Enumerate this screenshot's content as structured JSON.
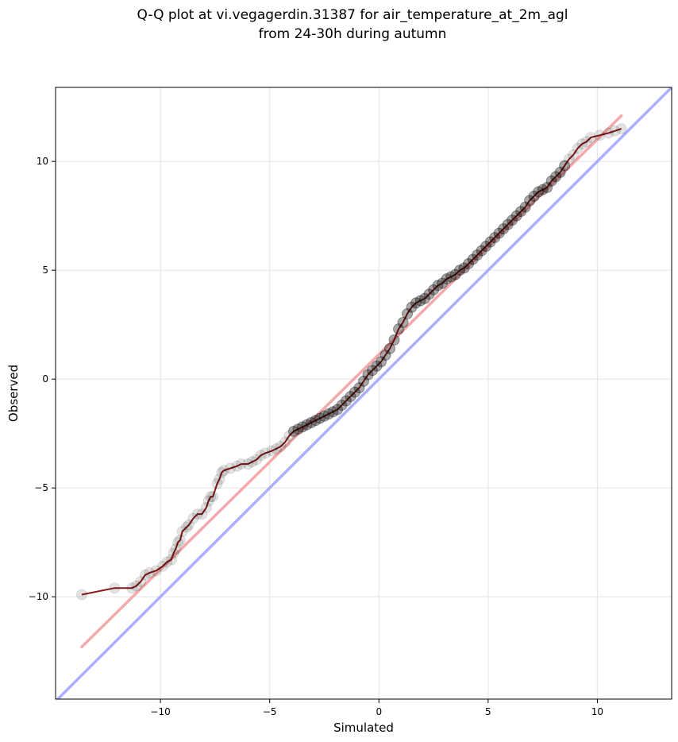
{
  "chart_data": {
    "type": "scatter",
    "title_lines": [
      "Q-Q plot at vi.vegagerdin.31387 for air_temperature_at_2m_agl",
      "from 24-30h during autumn"
    ],
    "xlabel": "Simulated",
    "ylabel": "Observed",
    "xlim": [
      -14.8,
      13.4
    ],
    "ylim": [
      -14.7,
      13.4
    ],
    "xticks": [
      -10,
      -5,
      0,
      5,
      10
    ],
    "yticks": [
      -10,
      -5,
      0,
      5,
      10
    ],
    "xtick_labels": [
      "−10",
      "−5",
      "0",
      "5",
      "10"
    ],
    "ytick_labels": [
      "−10",
      "−5",
      "0",
      "5",
      "10"
    ],
    "grid": true,
    "identity_line": {
      "color": "#aaaaff"
    },
    "fit_line": {
      "x": [
        -13.6,
        11.1
      ],
      "y": [
        -12.3,
        12.1
      ],
      "color": "#f4a6a6"
    },
    "curve_color": "#8b1a1a",
    "marker_color": "#000000",
    "quantiles": {
      "x": [
        -13.6,
        -12.1,
        -11.3,
        -11.1,
        -10.9,
        -10.7,
        -10.5,
        -10.2,
        -9.9,
        -9.7,
        -9.5,
        -9.4,
        -9.3,
        -9.2,
        -9.1,
        -9.0,
        -8.8,
        -8.7,
        -8.5,
        -8.3,
        -8.1,
        -7.9,
        -7.8,
        -7.7,
        -7.6,
        -7.4,
        -7.3,
        -7.2,
        -7.1,
        -6.8,
        -6.5,
        -6.3,
        -6.0,
        -5.8,
        -5.6,
        -5.4,
        -5.2,
        -4.9,
        -4.7,
        -4.5,
        -4.3,
        -4.1,
        -3.9,
        -3.7,
        -3.5,
        -3.3,
        -3.1,
        -2.9,
        -2.7,
        -2.5,
        -2.3,
        -2.1,
        -1.9,
        -1.7,
        -1.5,
        -1.3,
        -1.1,
        -0.9,
        -0.7,
        -0.5,
        -0.3,
        -0.1,
        0.1,
        0.3,
        0.5,
        0.7,
        0.9,
        1.1,
        1.3,
        1.5,
        1.7,
        1.9,
        2.1,
        2.3,
        2.5,
        2.7,
        2.9,
        3.1,
        3.3,
        3.5,
        3.7,
        3.9,
        4.1,
        4.3,
        4.5,
        4.7,
        4.9,
        5.1,
        5.3,
        5.5,
        5.7,
        5.9,
        6.1,
        6.3,
        6.5,
        6.7,
        6.9,
        7.1,
        7.3,
        7.5,
        7.7,
        7.9,
        8.1,
        8.3,
        8.5,
        8.7,
        8.9,
        9.1,
        9.3,
        9.5,
        9.7,
        10.1,
        10.5,
        10.8,
        11.1
      ],
      "y": [
        -9.9,
        -9.6,
        -9.6,
        -9.5,
        -9.3,
        -9.0,
        -8.9,
        -8.8,
        -8.6,
        -8.4,
        -8.3,
        -8.0,
        -7.8,
        -7.5,
        -7.4,
        -7.0,
        -6.8,
        -6.7,
        -6.4,
        -6.2,
        -6.2,
        -5.9,
        -5.6,
        -5.4,
        -5.4,
        -4.8,
        -4.6,
        -4.3,
        -4.2,
        -4.1,
        -4.0,
        -3.9,
        -3.9,
        -3.8,
        -3.7,
        -3.5,
        -3.4,
        -3.3,
        -3.2,
        -3.1,
        -2.9,
        -2.6,
        -2.4,
        -2.3,
        -2.2,
        -2.1,
        -2.0,
        -1.9,
        -1.8,
        -1.7,
        -1.6,
        -1.5,
        -1.4,
        -1.2,
        -1.0,
        -0.8,
        -0.6,
        -0.4,
        -0.1,
        0.2,
        0.4,
        0.6,
        0.8,
        1.1,
        1.4,
        1.8,
        2.3,
        2.6,
        3.0,
        3.3,
        3.5,
        3.6,
        3.7,
        3.9,
        4.1,
        4.3,
        4.4,
        4.6,
        4.7,
        4.8,
        5.0,
        5.1,
        5.3,
        5.5,
        5.7,
        5.9,
        6.1,
        6.3,
        6.5,
        6.7,
        6.9,
        7.1,
        7.3,
        7.5,
        7.7,
        7.9,
        8.2,
        8.4,
        8.6,
        8.7,
        8.8,
        9.1,
        9.3,
        9.5,
        9.8,
        10.1,
        10.3,
        10.6,
        10.8,
        10.9,
        11.1,
        11.2,
        11.3,
        11.4,
        11.5
      ]
    }
  }
}
